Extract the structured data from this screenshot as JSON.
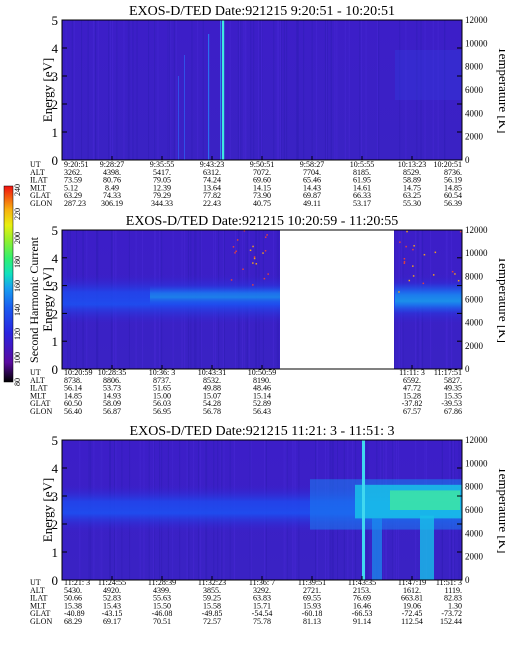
{
  "colorbar": {
    "label": "Second Harmonic Current",
    "ticks": [
      "80",
      "100",
      "120",
      "140",
      "160",
      "180",
      "200",
      "220",
      "240"
    ],
    "colors": [
      "#000000",
      "#5a0aa0",
      "#3a1fd0",
      "#1a3cf0",
      "#1a78f0",
      "#18b8e8",
      "#10e0b0",
      "#30f070",
      "#90f030",
      "#e0f010",
      "#f8c010",
      "#f87010",
      "#f01010"
    ]
  },
  "chart_data": [
    {
      "type": "heatmap",
      "title": "EXOS-D/TED",
      "date": "Date:921215",
      "time_range": "9:20:51 - 10:20:51",
      "ylabel": "Energy [eV]",
      "y2label": "Temperature [K]",
      "ylim": [
        0,
        5
      ],
      "y2lim": [
        0,
        12000
      ],
      "yticks": [
        "0",
        "1",
        "2",
        "3",
        "4",
        "5"
      ],
      "y2ticks": [
        "0",
        "2000",
        "4000",
        "6000",
        "8000",
        "10000",
        "12000"
      ],
      "row_labels": [
        "UT",
        "ALT",
        "ILAT",
        "MLT",
        "GLAT",
        "GLON"
      ],
      "columns": [
        [
          "9:20:51",
          "3262.",
          "73.59",
          "5.12",
          "63.29",
          "287.23"
        ],
        [
          "9:28:27",
          "4398.",
          "80.76",
          "8.49",
          "74.33",
          "306.19"
        ],
        [
          "9:35:55",
          "5417.",
          "79.05",
          "12.39",
          "79.29",
          "344.33"
        ],
        [
          "9:43:23",
          "6312.",
          "74.24",
          "13.64",
          "77.82",
          "22.43"
        ],
        [
          "9:50:51",
          "7072.",
          "69.60",
          "14.15",
          "73.90",
          "40.75"
        ],
        [
          "9:58:27",
          "7704.",
          "65.46",
          "14.43",
          "69.87",
          "49.11"
        ],
        [
          "10:5:55",
          "8185.",
          "61.95",
          "14.61",
          "66.33",
          "53.17"
        ],
        [
          "10:13:23",
          "8529.",
          "58.89",
          "14.75",
          "63.25",
          "55.30"
        ],
        [
          "10:20:51",
          "8736.",
          "56.19",
          "14.85",
          "60.54",
          "56.39"
        ]
      ],
      "features": "faint intensity background; bright vertical spikes near 9:43"
    },
    {
      "type": "heatmap",
      "title": "EXOS-D/TED",
      "date": "Date:921215",
      "time_range": "10:20:59 - 11:20:55",
      "ylabel": "Energy [eV]",
      "y2label": "Temperature [K]",
      "ylim": [
        0,
        5
      ],
      "y2lim": [
        0,
        12000
      ],
      "yticks": [
        "0",
        "1",
        "2",
        "3",
        "4",
        "5"
      ],
      "y2ticks": [
        "0",
        "2000",
        "4000",
        "6000",
        "8000",
        "10000",
        "12000"
      ],
      "row_labels": [
        "UT",
        "ALT",
        "ILAT",
        "MLT",
        "GLAT",
        "GLON"
      ],
      "columns": [
        [
          "10:20:59",
          "8738.",
          "56.14",
          "14.85",
          "60.50",
          "56.40"
        ],
        [
          "10:28:35",
          "8806.",
          "53.73",
          "14.93",
          "58.09",
          "56.87"
        ],
        [
          "10:36: 3",
          "8737.",
          "51.65",
          "15.00",
          "56.03",
          "56.95"
        ],
        [
          "10:43:31",
          "8532.",
          "49.88",
          "15.07",
          "54.28",
          "56.78"
        ],
        [
          "10:50:59",
          "8190.",
          "48.46",
          "15.14",
          "52.89",
          "56.43"
        ],
        [
          "",
          "",
          "",
          "",
          "",
          ""
        ],
        [
          "",
          "",
          "",
          "",
          "",
          ""
        ],
        [
          "11:11: 3",
          "6592.",
          "47.72",
          "15.28",
          "-37.82",
          "67.57"
        ],
        [
          "11:17:51",
          "5827.",
          "49.35",
          "15.35",
          "-39.53",
          "67.86"
        ]
      ],
      "gap": "data gap between about 10:52 and 11:10",
      "features": "enhanced band between 2 and 3 eV"
    },
    {
      "type": "heatmap",
      "title": "EXOS-D/TED",
      "date": "Date:921215",
      "time_range": "11:21: 3 - 11:51: 3",
      "ylabel": "Energy [eV]",
      "y2label": "Temperature [K]",
      "ylim": [
        0,
        5
      ],
      "y2lim": [
        0,
        12000
      ],
      "yticks": [
        "0",
        "1",
        "2",
        "3",
        "4",
        "5"
      ],
      "y2ticks": [
        "0",
        "2000",
        "4000",
        "6000",
        "8000",
        "10000",
        "12000"
      ],
      "row_labels": [
        "UT",
        "ALT",
        "ILAT",
        "MLT",
        "GLAT",
        "GLON"
      ],
      "columns": [
        [
          "11:21: 3",
          "5430.",
          "50.66",
          "15.38",
          "-40.89",
          "68.29"
        ],
        [
          "11:24:55",
          "4920.",
          "52.83",
          "15.43",
          "-43.15",
          "69.17"
        ],
        [
          "11:28:39",
          "4399.",
          "55.63",
          "15.50",
          "-46.08",
          "70.51"
        ],
        [
          "11:32:23",
          "3855.",
          "59.25",
          "15.58",
          "-49.85",
          "72.57"
        ],
        [
          "11:36: 7",
          "3292.",
          "63.83",
          "15.71",
          "-54.54",
          "75.78"
        ],
        [
          "11:39:51",
          "2721.",
          "69.55",
          "15.93",
          "-60.18",
          "81.13"
        ],
        [
          "11:43:35",
          "2153.",
          "76.69",
          "16.46",
          "-66.53",
          "91.14"
        ],
        [
          "11:47:19",
          "1612.",
          "663.81",
          "19.06",
          "-72.45",
          "112.54"
        ],
        [
          "11:51: 3",
          "1119.",
          "82.83",
          "1.30",
          "-73.72",
          "152.44"
        ]
      ],
      "features": "band between 2 and 3 eV; intense cyan/green enhancement after 11:43"
    }
  ]
}
